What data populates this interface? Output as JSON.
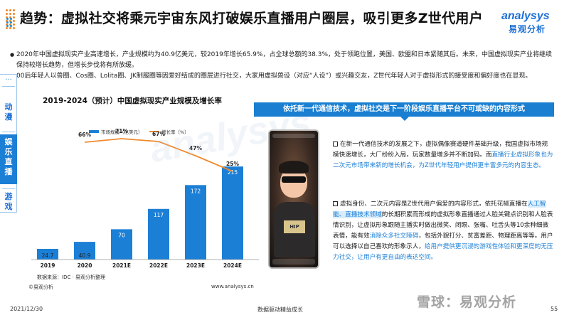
{
  "header": {
    "title": "趋势：虚拟社交将乘元宇宙东风打破娱乐直播用户圈层，吸引更多Z世代用户",
    "logo_text": "analysys",
    "logo_cn": "易观分析"
  },
  "bullets": [
    "2020年中国虚拟现实产业高速增长，产业规模约为40.9亿美元，较2019年增长65.9%，占全球总额的38.3%，处于领跑位置，美国、欧盟和日本紧随其后。未来，中国虚拟现实产业将继续保持较增长趋势，但增长步伐将有所放缓。",
    "00后年轻人以兽圈、Cos圈、Lolita圈、JK制服圈等因爱好结成的圈层进行社交，大家用虚拟兽设（对应“人设”）或兴趣交友，Z世代年轻人对于虚拟形式的接受度和偏好度也在显现。"
  ],
  "sidenav": {
    "more": "···",
    "items": [
      "动漫",
      "娱乐直播",
      "游戏"
    ],
    "active_index": 1
  },
  "chart_title": "2019-2024（预计）中国虚拟现实产业规模及增长率",
  "chart_data": {
    "type": "bar",
    "categories": [
      "2019",
      "2020",
      "2021E",
      "2022E",
      "2023E",
      "2024E"
    ],
    "series": [
      {
        "name": "市场规模（亿美元）",
        "type": "bar",
        "values": [
          24.7,
          40.9,
          70,
          117,
          172,
          215
        ],
        "color": "#1c7fd6"
      },
      {
        "name": "增长率（%）",
        "type": "line",
        "values": [
          null,
          66,
          71,
          67,
          47,
          25
        ],
        "labels": [
          "",
          "66%",
          "71%",
          "67%",
          "47%",
          "25%"
        ],
        "color": "#f08a2d"
      }
    ],
    "ylim": [
      0,
      230
    ],
    "legend": "top-center"
  },
  "chart_source": "数据来源：IDC · 易观分析整理",
  "copyright": "©易观分析",
  "site_url": "www.analysys.cn",
  "right": {
    "banner": "依托新一代通信技术，虚拟社交是下一阶段娱乐直播平台不可或缺的内容形式",
    "phone_shirt": "HIP",
    "p1_plain": "在新一代通信技术的发展之下，虚拟偶像赛道硬件基础升级，我国虚拟市场规模快速增长，大厂纷纷入局，玩家数量增多并不断加码。而",
    "p1_hl": "直播行业虚拟形象也为二次元市场带来新的增长机会，为Z世代年轻用户提供更丰富多元的内容生态。",
    "p2_a": "虚拟身份、二次元内容是Z世代用户偏爱的内容形式，依托花椒直播在",
    "p2_hl1": "人工智能、直播技术领域",
    "p2_b": "的长期积累而形成的虚拟形象直播通过人脸关键点识别和人脸表情识别，让虚拟形象跟随主播实时做出微笑、闭眼、张嘴、吐舌头等10余种细微表情，能有效",
    "p2_hl2": "消除众多社交障碍",
    "p2_c": "，包括外貌打分、贫富差距、物理距离等等。用户可以选择以自己喜欢的形象示人，",
    "p2_hl3": "给用户提供更沉浸的游戏性体验和更深度的无压力社交，让用户有更自由的表达空间。"
  },
  "footer": {
    "date": "2021/12/30",
    "slogan": "数据驱动精益成长",
    "page": "55",
    "xueqiu": "雪球：易观分析"
  }
}
